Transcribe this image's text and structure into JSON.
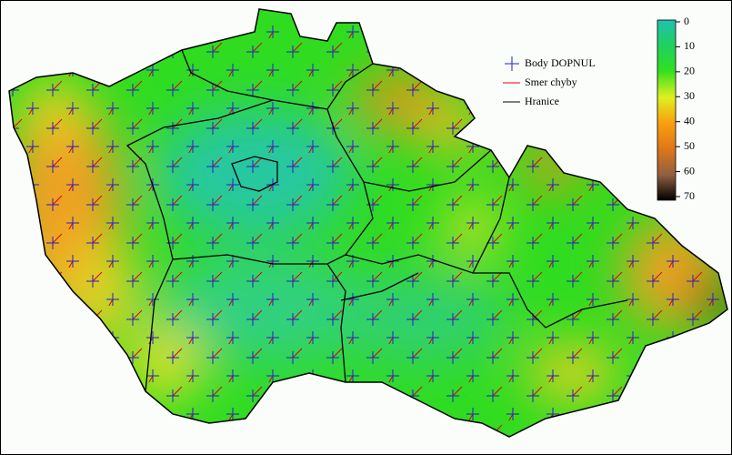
{
  "legend": {
    "items": [
      "Body DOPNUL",
      "Smer chyby",
      "Hranice"
    ]
  },
  "colorbar": {
    "range": [
      0,
      70
    ],
    "ticks": [
      0,
      10,
      20,
      30,
      40,
      50,
      60,
      70
    ]
  }
}
